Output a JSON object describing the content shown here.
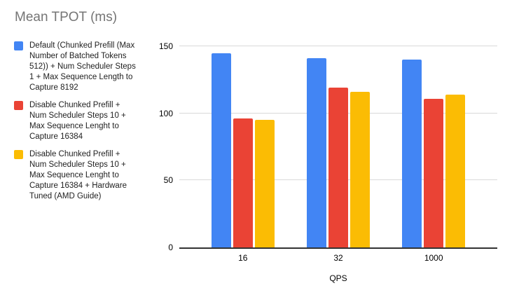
{
  "chart_data": {
    "type": "bar",
    "title": "Mean TPOT (ms)",
    "categories": [
      "16",
      "32",
      "1000"
    ],
    "series": [
      {
        "name": "Default (Chunked Prefill (Max Number of Batched Tokens 512)) + Num Scheduler Steps 1 + Max Sequence Length to Capture 8192",
        "color": "#4285F4",
        "values": [
          145,
          141,
          140
        ]
      },
      {
        "name": "Disable Chunked Prefill + Num Scheduler Steps 10 + Max Sequence Lenght to Capture 16384",
        "color": "#EA4335",
        "values": [
          96,
          119,
          111
        ]
      },
      {
        "name": "Disable Chunked Prefill + Num Scheduler Steps 10 + Max Sequence Lenght to Capture 16384 + Hardware Tuned (AMD Guide)",
        "color": "#FBBC04",
        "values": [
          95,
          116,
          114
        ]
      }
    ],
    "xlabel": "QPS",
    "ylabel": "",
    "ylim": [
      0,
      150
    ],
    "yticks": [
      0,
      50,
      100,
      150
    ],
    "grid": true,
    "legend_position": "left"
  },
  "legend": {
    "items": [
      {
        "label": "Default (Chunked Prefill (Max\nNumber of Batched Tokens\n512)) + Num Scheduler Steps\n1 + Max Sequence Length to\nCapture 8192"
      },
      {
        "label": "Disable Chunked Prefill +\nNum Scheduler Steps 10 +\nMax Sequence Lenght to\nCapture 16384"
      },
      {
        "label": "Disable Chunked Prefill +\nNum Scheduler Steps 10 +\nMax Sequence Lenght to\nCapture 16384 + Hardware\nTuned (AMD Guide)"
      }
    ]
  },
  "colors": {
    "title_text": "#757575",
    "axis_text": "#000000",
    "legend_text": "#212121",
    "gridline": "#d9d9d9",
    "axis_line": "#333333",
    "background": "#ffffff",
    "series_blue": "#4285F4",
    "series_red": "#EA4335",
    "series_yellow": "#FBBC04"
  }
}
